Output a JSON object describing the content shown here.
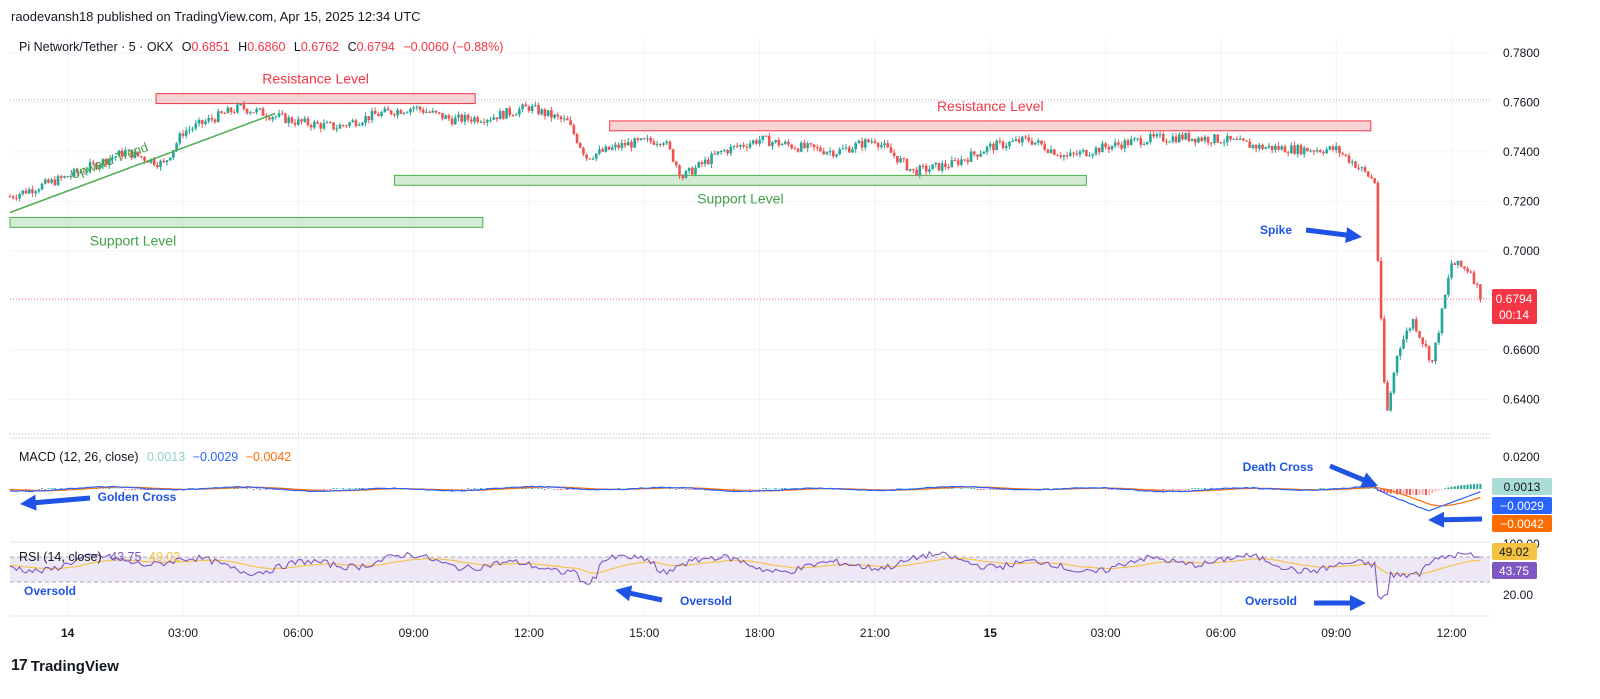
{
  "header": {
    "published_line": "raodevansh18 published on TradingView.com, Apr 15, 2025 12:34 UTC"
  },
  "brand": {
    "logo_text": "17",
    "name": "TradingView"
  },
  "colors": {
    "up": "#26a69a",
    "down": "#ef5350",
    "resistance_fill": "#f8c9cc",
    "resistance_stroke": "#f23645",
    "support_fill": "#c8e6c9",
    "support_stroke": "#4caf50",
    "arrow": "#1e53e5",
    "macd_line": "#2962ff",
    "signal_line": "#ff6d00",
    "rsi_line": "#7e57c2",
    "rsi_ma": "#f5c242",
    "price_badge": "#f23645"
  },
  "chart_data": [
    {
      "type": "candlestick",
      "legend": {
        "symbol": "Pi Network/Tether · 5 · OKX",
        "o_label": "O",
        "o": "0.6851",
        "h_label": "H",
        "h": "0.6860",
        "l_label": "L",
        "l": "0.6762",
        "c_label": "C",
        "c": "0.6794",
        "change": "−0.0060 (−0.88%)"
      },
      "ylim": [
        0.626,
        0.786
      ],
      "yticks": [
        "0.7800",
        "0.7600",
        "0.7400",
        "0.7200",
        "0.7000",
        "0.6600",
        "0.6400"
      ],
      "ytick_values": [
        0.78,
        0.76,
        0.74,
        0.72,
        0.7,
        0.66,
        0.64
      ],
      "last_price": "0.6794",
      "countdown": "00:14",
      "xticks": [
        "14",
        "03:00",
        "06:00",
        "09:00",
        "12:00",
        "15:00",
        "18:00",
        "21:00",
        "15",
        "03:00",
        "06:00",
        "09:00",
        "12:00"
      ],
      "xtick_hours": [
        0,
        3,
        6,
        9,
        12,
        15,
        18,
        21,
        24,
        27,
        30,
        33,
        36
      ],
      "x_range_hours": [
        -1.5,
        37.0
      ],
      "price_path_hours": [
        -1.5,
        0,
        1.5,
        2.5,
        3,
        4,
        4.5,
        6,
        7,
        8,
        9,
        10,
        11,
        12,
        13,
        13.5,
        14.5,
        15.5,
        16,
        17,
        18,
        19,
        20,
        21,
        22,
        23,
        24,
        25,
        26,
        27,
        28,
        29,
        30,
        31,
        32,
        33,
        33.5,
        34,
        34.1,
        34.3,
        34.6,
        35.0,
        35.5,
        36,
        36.5,
        36.8
      ],
      "price_path_values": [
        0.722,
        0.73,
        0.74,
        0.735,
        0.748,
        0.755,
        0.758,
        0.752,
        0.75,
        0.755,
        0.758,
        0.753,
        0.754,
        0.758,
        0.752,
        0.738,
        0.743,
        0.745,
        0.73,
        0.74,
        0.745,
        0.742,
        0.74,
        0.745,
        0.732,
        0.735,
        0.742,
        0.745,
        0.738,
        0.742,
        0.745,
        0.746,
        0.745,
        0.742,
        0.741,
        0.741,
        0.735,
        0.728,
        0.69,
        0.632,
        0.66,
        0.672,
        0.655,
        0.695,
        0.692,
        0.68
      ],
      "annotations": {
        "resistance_left": {
          "label": "Resistance Level",
          "from_hour": 2.3,
          "to_hour": 10.6,
          "price_low": 0.7595,
          "price_high": 0.7635
        },
        "resistance_right": {
          "label": "Resistance Level",
          "from_hour": 14.1,
          "to_hour": 33.9,
          "price_low": 0.7485,
          "price_high": 0.7525
        },
        "support_left": {
          "label": "Support Level",
          "from_hour": -1.5,
          "to_hour": 10.8,
          "price_low": 0.7095,
          "price_high": 0.7135
        },
        "support_mid": {
          "label": "Support Level",
          "from_hour": 8.5,
          "to_hour": 26.5,
          "price_low": 0.7265,
          "price_high": 0.7305
        },
        "trend": {
          "label": "Upward Trend",
          "from_hour": -1.5,
          "from_price": 0.7155,
          "to_hour": 5.4,
          "to_price": 0.7555
        },
        "spike": {
          "label": "Spike"
        }
      }
    },
    {
      "type": "macd",
      "legend": {
        "name": "MACD (12, 26, close)",
        "hist": "0.0013",
        "macd": "−0.0029",
        "signal": "−0.0042"
      },
      "yticks": [
        "0.0200"
      ],
      "badges": [
        "0.0013",
        "−0.0029",
        "−0.0042"
      ],
      "annotations": {
        "golden_cross": "Golden Cross",
        "death_cross": "Death Cross"
      }
    },
    {
      "type": "rsi",
      "legend": {
        "name": "RSI (14, close)",
        "rsi": "43.75",
        "ma": "49.02"
      },
      "yticks": [
        "100.00",
        "20.00"
      ],
      "badges": [
        "49.02",
        "43.75"
      ],
      "annotations": {
        "oversold_left": "Oversold",
        "oversold_mid": "Oversold",
        "oversold_right": "Oversold"
      }
    }
  ]
}
